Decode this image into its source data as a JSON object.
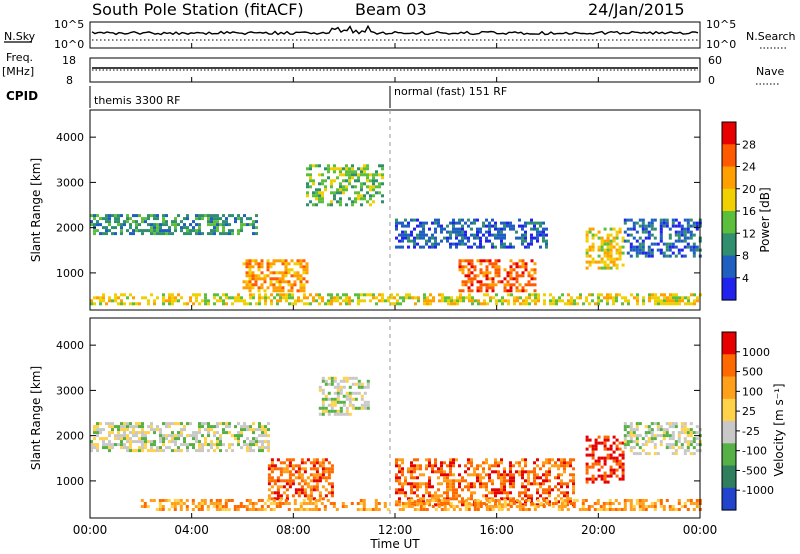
{
  "header": {
    "title": "South Pole Station (fitACF)",
    "beam": "Beam 03",
    "date": "24/Jan/2015"
  },
  "top_panels": {
    "nsky_label": "N.Sky",
    "nsky_ticks": [
      "10^5",
      "10^0"
    ],
    "nsearch_label": "N.Search",
    "nsearch_ticks": [
      "10^5",
      "10^0"
    ],
    "freq_label": "Freq.",
    "freq_unit": "[MHz]",
    "freq_ticks": [
      "18",
      "8"
    ],
    "nave_label": "Nave",
    "nave_ticks": [
      "60",
      "0"
    ],
    "cpid_label": "CPID",
    "cpid_modes": [
      {
        "name": "themis 3300 RF"
      },
      {
        "name": "normal (fast) 151 RF"
      }
    ]
  },
  "chart_data": [
    {
      "type": "heatmap",
      "name": "power",
      "ylabel": "Slant Range [km]",
      "yticks": [
        "4000",
        "3000",
        "2000",
        "1000"
      ],
      "ylim": [
        180,
        4600
      ],
      "xlim": [
        0,
        24
      ],
      "colorbar_label": "Power [dB]",
      "colorbar_ticks": [
        "28",
        "24",
        "20",
        "16",
        "12",
        "8",
        "4"
      ],
      "colorbar_range": [
        0,
        32
      ],
      "colors": [
        "#2222ee",
        "#1f5fbf",
        "#2f8f6f",
        "#5bbf3b",
        "#f0d000",
        "#ff9f00",
        "#ff5a00",
        "#e80000"
      ],
      "bands": [
        {
          "x": [
            0,
            6.5
          ],
          "range": [
            1850,
            2300
          ],
          "level": 2
        },
        {
          "x": [
            6.0,
            8.5
          ],
          "range": [
            600,
            1300
          ],
          "level": 5
        },
        {
          "x": [
            8.5,
            11.5
          ],
          "range": [
            2500,
            3400
          ],
          "level": 3
        },
        {
          "x": [
            12.0,
            18.0
          ],
          "range": [
            1600,
            2200
          ],
          "level": 1
        },
        {
          "x": [
            14.5,
            17.5
          ],
          "range": [
            600,
            1300
          ],
          "level": 6
        },
        {
          "x": [
            19.5,
            21.0
          ],
          "range": [
            1100,
            2000
          ],
          "level": 4
        },
        {
          "x": [
            21.0,
            24.0
          ],
          "range": [
            1400,
            2200
          ],
          "level": 1
        },
        {
          "x": [
            0,
            24.0
          ],
          "range": [
            300,
            550
          ],
          "level": 4
        }
      ]
    },
    {
      "type": "heatmap",
      "name": "velocity",
      "ylabel": "Slant Range [km]",
      "yticks": [
        "4000",
        "3000",
        "2000",
        "1000"
      ],
      "ylim": [
        180,
        4600
      ],
      "xlim": [
        0,
        24
      ],
      "colorbar_label": "Velocity [m s⁻¹]",
      "colorbar_ticks": [
        "1000",
        "500",
        "100",
        "25",
        "-25",
        "-100",
        "-500",
        "-1000"
      ],
      "colors": [
        "#2244cc",
        "#2f7f5f",
        "#55b045",
        "#c8c8c8",
        "#ffd24a",
        "#ff9f1a",
        "#ff6a00",
        "#e60000"
      ],
      "bands": [
        {
          "x": [
            0,
            7.0
          ],
          "range": [
            1700,
            2300
          ],
          "level": 3
        },
        {
          "x": [
            7.0,
            9.5
          ],
          "range": [
            600,
            1500
          ],
          "level": 6
        },
        {
          "x": [
            9.0,
            11.0
          ],
          "range": [
            2500,
            3300
          ],
          "level": 3
        },
        {
          "x": [
            12.0,
            19.0
          ],
          "range": [
            500,
            1500
          ],
          "level": 6
        },
        {
          "x": [
            19.5,
            21.0
          ],
          "range": [
            1000,
            2000
          ],
          "level": 7
        },
        {
          "x": [
            21.0,
            24.0
          ],
          "range": [
            1600,
            2300
          ],
          "level": 3
        },
        {
          "x": [
            2.0,
            24.0
          ],
          "range": [
            350,
            600
          ],
          "level": 5
        }
      ]
    }
  ],
  "xaxis": {
    "label": "Time UT",
    "ticks": [
      "00:00",
      "04:00",
      "08:00",
      "12:00",
      "16:00",
      "20:00",
      "00:00"
    ]
  }
}
